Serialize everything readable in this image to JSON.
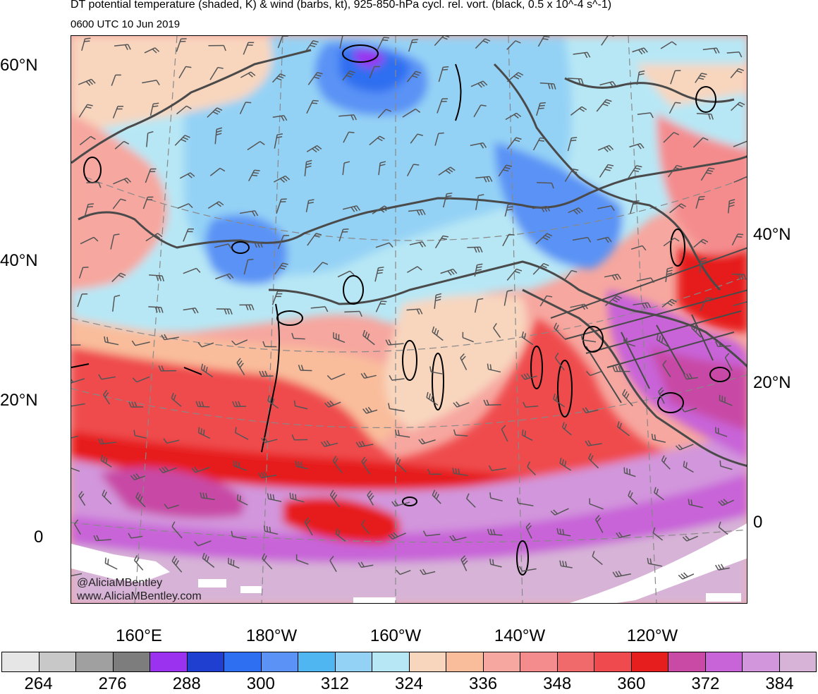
{
  "header": {
    "title": "DT potential temperature (shaded, K) & wind (barbs, kt), 925-850-hPa cycl. rel. vort. (black, 0.5 x 10^-4 s^-1)",
    "valid_time": "0600 UTC 10 Jun 2019"
  },
  "map": {
    "projection": "polar stereographic",
    "left_lat_labels": [
      "60°N",
      "40°N",
      "20°N",
      "0"
    ],
    "right_lat_labels": [
      "40°N",
      "20°N",
      "0"
    ],
    "lon_labels": [
      "160°E",
      "180°W",
      "160°W",
      "140°W",
      "120°W"
    ],
    "credit_handle": "@AliciaMBentley",
    "credit_url": "www.AliciaMBentley.com",
    "colors": {
      "coastline": "#4a4a4a",
      "vorticity_contour": "#000000",
      "graticule": "#888888",
      "wind_barbs": "#555555"
    }
  },
  "colorbar": {
    "units": "K",
    "colors": [
      "#e6e6e6",
      "#c8c8c8",
      "#a0a0a0",
      "#7d7d7d",
      "#9a32f0",
      "#1e3fd0",
      "#2e6ef0",
      "#5a93f5",
      "#4fb6f2",
      "#94d2f5",
      "#b7e7f5",
      "#f8d6be",
      "#f9bd9c",
      "#f6a79f",
      "#f48c8e",
      "#f06a6c",
      "#ef4b4e",
      "#e61e1e",
      "#c84aa5",
      "#c864d8",
      "#d296dc",
      "#d7b4d7"
    ],
    "labels": [
      "264",
      "276",
      "288",
      "300",
      "312",
      "324",
      "336",
      "348",
      "360",
      "372",
      "384"
    ]
  }
}
